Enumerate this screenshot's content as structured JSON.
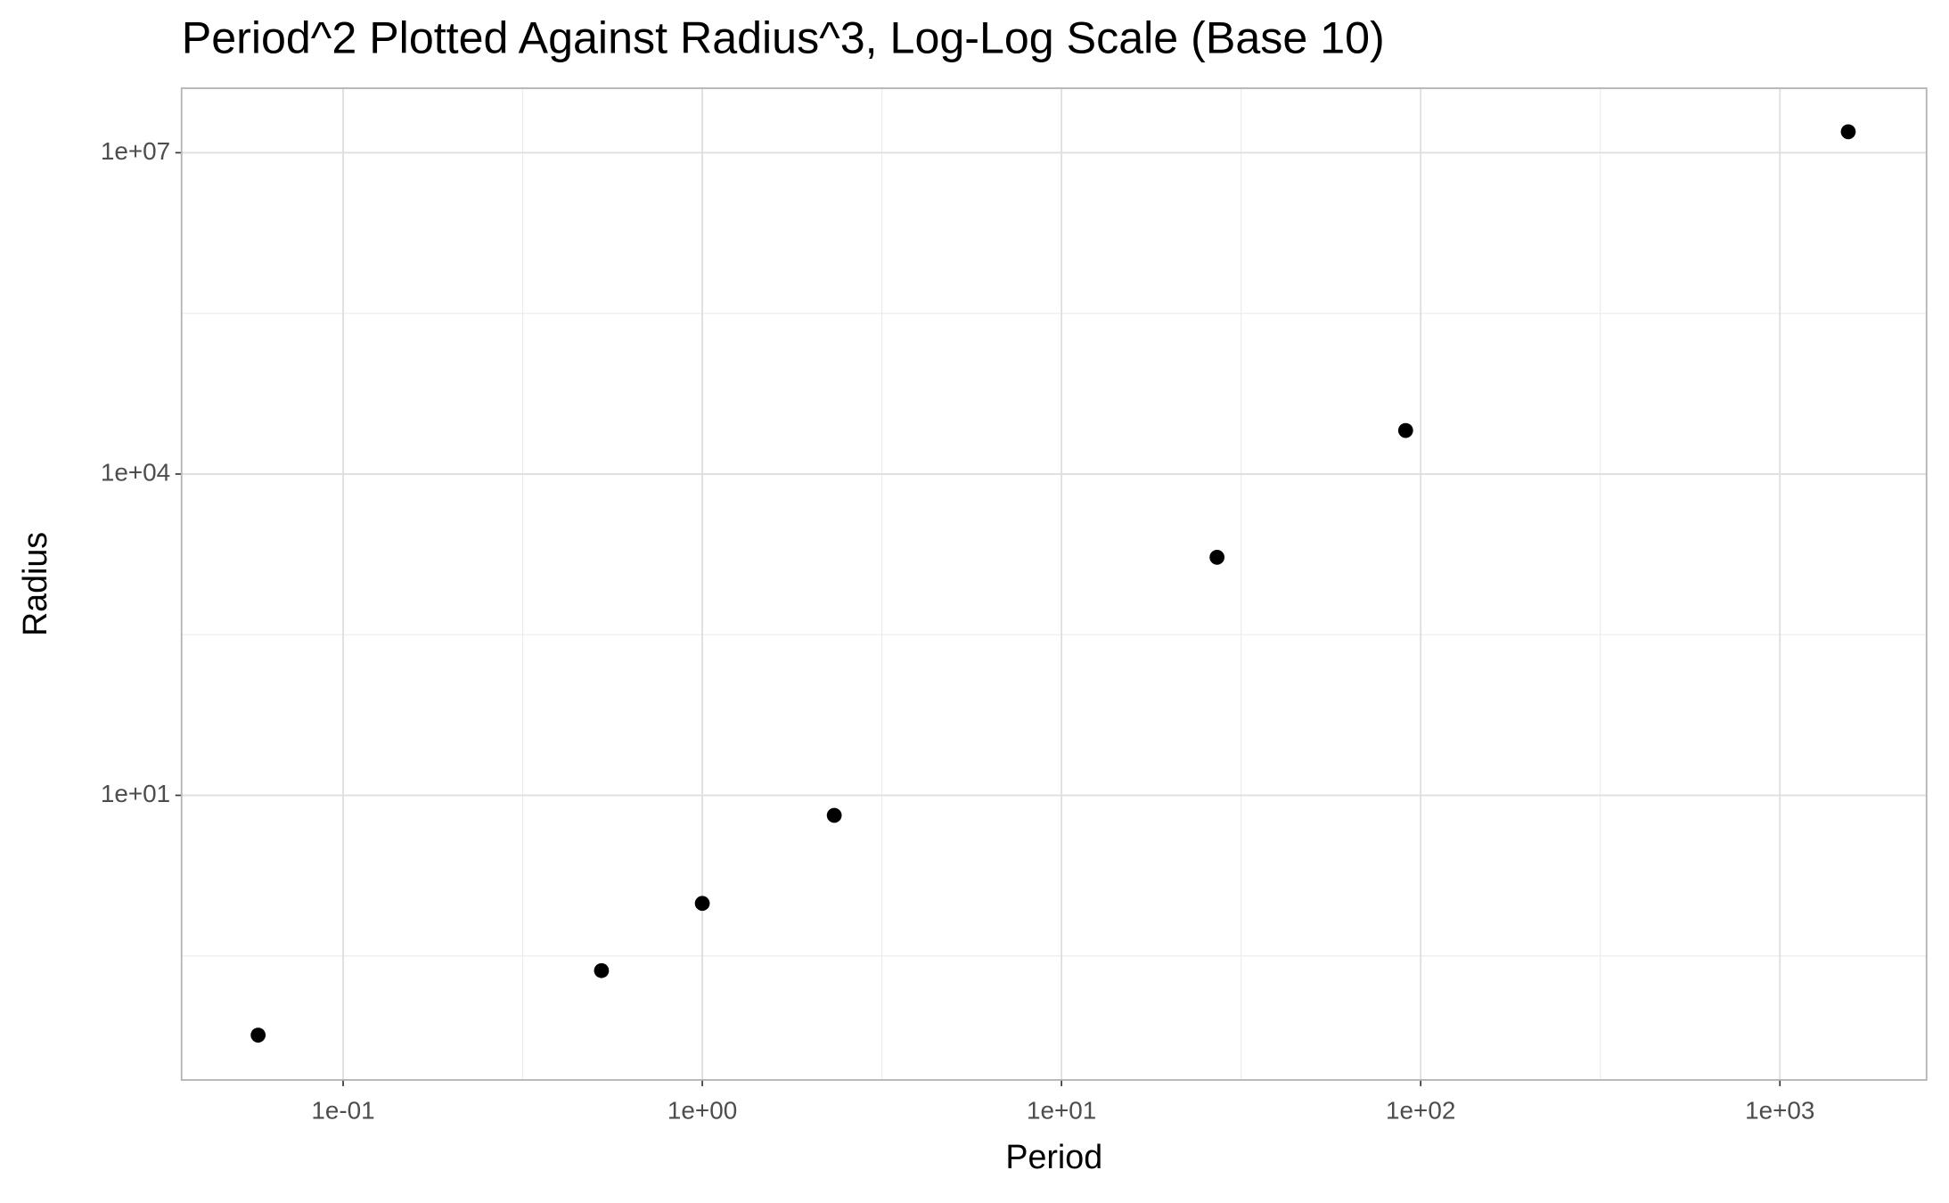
{
  "chart_data": {
    "type": "scatter",
    "title": "Period^2 Plotted Against Radius^3, Log-Log Scale (Base 10)",
    "x_label": "Period",
    "y_label": "Radius",
    "x": [
      0.058,
      0.524,
      1,
      2.33,
      27.1,
      90.8,
      1550
    ],
    "series": [
      {
        "color": "#000000",
        "values": [
          0.0577,
          0.231,
          0.98,
          6.5,
          1670,
          25500,
          15700000
        ]
      }
    ],
    "xscale": "log",
    "yscale": "log",
    "xlim": [
      0.0355,
      2560
    ],
    "ylim": [
      0.022,
      40000000
    ],
    "xticks": [
      {
        "value": 0.1,
        "label": "1e-01"
      },
      {
        "value": 1,
        "label": "1e+00"
      },
      {
        "value": 10,
        "label": "1e+01"
      },
      {
        "value": 100,
        "label": "1e+02"
      },
      {
        "value": 1000,
        "label": "1e+03"
      }
    ],
    "yticks": [
      {
        "value": 10,
        "label": "1e+01"
      },
      {
        "value": 10000,
        "label": "1e+04"
      },
      {
        "value": 10000000,
        "label": "1e+07"
      }
    ],
    "grid": true
  }
}
